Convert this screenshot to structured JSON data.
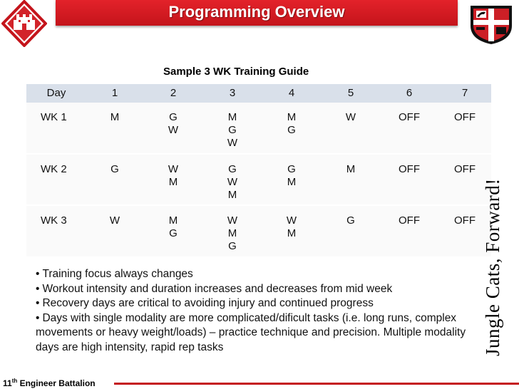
{
  "header": {
    "title": "Programming Overview"
  },
  "table": {
    "caption": "Sample 3 WK Training Guide",
    "columns": [
      "Day",
      "1",
      "2",
      "3",
      "4",
      "5",
      "6",
      "7"
    ],
    "rows": [
      {
        "label": "WK 1",
        "cells": [
          "M",
          "G\nW",
          "M\nG\nW",
          "M\nG",
          "W",
          "OFF",
          "OFF"
        ]
      },
      {
        "label": "WK 2",
        "cells": [
          "G",
          "W\nM",
          "G\nW\nM",
          "G\nM",
          "M",
          "OFF",
          "OFF"
        ]
      },
      {
        "label": "WK 3",
        "cells": [
          "W",
          "M\nG",
          "W\nM\nG",
          "W\nM",
          "G",
          "OFF",
          "OFF"
        ]
      }
    ]
  },
  "side_motto": "Jungle Cats, Forward!",
  "bullets": [
    "Training focus always changes",
    "Workout intensity and duration increases and decreases from mid week",
    "Recovery days are critical to avoiding injury and continued progress",
    "Days with single modality are more complicated/dificult tasks (i.e. long runs, complex movements or heavy weight/loads) – practice technique and precision.  Multiple modality days are high intensity, rapid rep tasks"
  ],
  "footer": {
    "ordinal_number": "11",
    "ordinal_suffix": "th",
    "unit_name": "Engineer  Battalion"
  },
  "colors": {
    "title_bar": "#c4141b",
    "table_header": "#d9e0ea"
  },
  "icons": {
    "left_logo": "engineer-castle-emblem",
    "right_logo": "battalion-crest"
  }
}
